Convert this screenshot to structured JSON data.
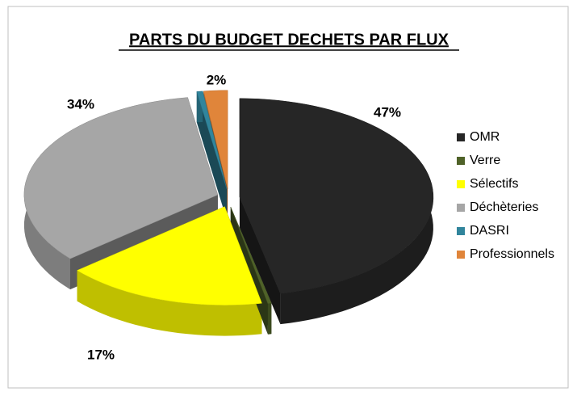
{
  "chart_data": {
    "type": "pie",
    "title": "PARTS DU BUDGET DECHETS PAR FLUX",
    "categories": [
      "OMR",
      "Verre",
      "Sélectifs",
      "Déchèteries",
      "DASRI",
      "Professionnels"
    ],
    "values": [
      47,
      0.3,
      17,
      34,
      0.5,
      2
    ],
    "value_labels": [
      "47%",
      null,
      "17%",
      "34%",
      null,
      "2%"
    ],
    "colors": [
      "#262626",
      "#4f6228",
      "#ffff00",
      "#a6a6a6",
      "#31859c",
      "#e0853a"
    ],
    "legend": "right"
  }
}
